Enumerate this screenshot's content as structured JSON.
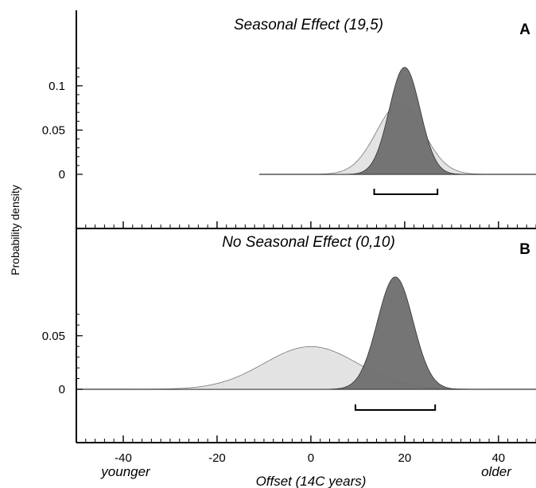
{
  "chart_data": [
    {
      "type": "area",
      "panel_letter": "A",
      "title": "Seasonal Effect (19,5)",
      "x_range": [
        -50,
        48
      ],
      "y_range": [
        -0.11,
        0.18
      ],
      "y_ticks": [
        {
          "value": 0,
          "label": "0"
        },
        {
          "value": 0.05,
          "label": "0.05"
        },
        {
          "value": 0.1,
          "label": "0.1"
        }
      ],
      "series": [
        {
          "role": "prior",
          "curve": "normal",
          "mean": 19,
          "sd": 5,
          "x_min": -11,
          "x_max": 48,
          "color": "#e3e3e3"
        },
        {
          "role": "posterior",
          "curve": "normal",
          "mean": 20,
          "sd": 3.3,
          "x_min": -11,
          "x_max": 48,
          "color": "#6e6e6e"
        }
      ],
      "interval": [
        13.5,
        27
      ]
    },
    {
      "type": "area",
      "panel_letter": "B",
      "title": "No Seasonal Effect (0,10)",
      "x_range": [
        -50,
        48
      ],
      "y_range": [
        -0.07,
        0.18
      ],
      "y_ticks": [
        {
          "value": 0,
          "label": "0"
        },
        {
          "value": 0.05,
          "label": "0.05"
        }
      ],
      "series": [
        {
          "role": "prior",
          "curve": "normal",
          "mean": 0,
          "sd": 10,
          "x_min": -50,
          "x_max": 48,
          "color": "#e3e3e3"
        },
        {
          "role": "posterior",
          "curve": "normal",
          "mean": 18,
          "sd": 3.8,
          "x_min": -50,
          "x_max": 48,
          "color": "#6e6e6e"
        }
      ],
      "interval": [
        9.5,
        26.5
      ]
    }
  ],
  "x_ticks": [
    {
      "value": -40,
      "label": "-40"
    },
    {
      "value": -20,
      "label": "-20"
    },
    {
      "value": 0,
      "label": "0"
    },
    {
      "value": 20,
      "label": "20"
    },
    {
      "value": 40,
      "label": "40"
    }
  ],
  "x_minor_step": 2,
  "xlabel": "Offset (14C years)",
  "ylabel": "Probability density",
  "x_left_label": "younger",
  "x_right_label": "older"
}
